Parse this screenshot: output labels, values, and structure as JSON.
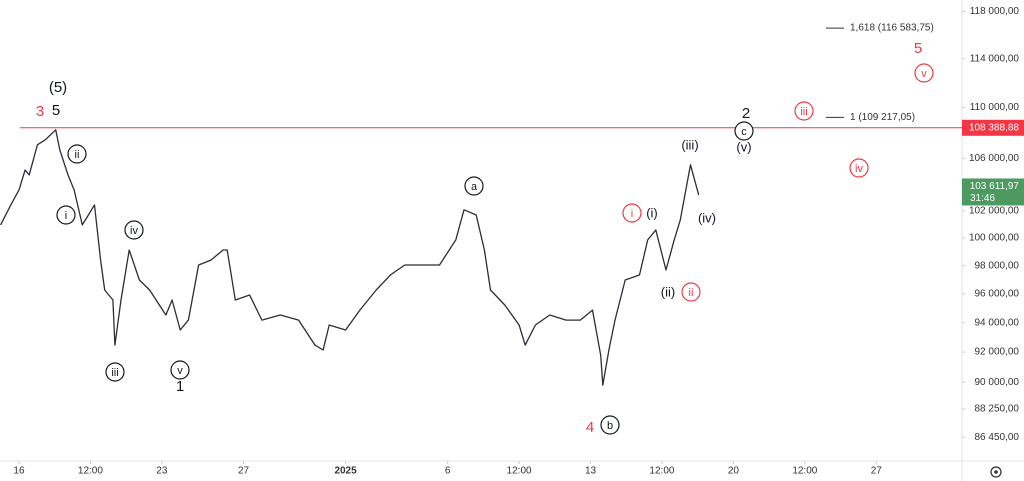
{
  "chart_data": {
    "type": "line",
    "log_scale": true,
    "grid": false,
    "series": [
      {
        "name": null,
        "color": "#2a2e39",
        "x": [
          -0.9,
          -0.4,
          0.0,
          0.3,
          0.5,
          0.9,
          1.3,
          1.8,
          2.0,
          2.4,
          2.7,
          3.1,
          3.4,
          3.7,
          4.0,
          4.2,
          4.6,
          4.7,
          5.0,
          5.4,
          5.9,
          6.4,
          7.2,
          7.5,
          7.9,
          8.3,
          8.8,
          9.4,
          10.0,
          10.2,
          10.6,
          11.3,
          11.9,
          12.8,
          13.7,
          14.5,
          14.9,
          15.2,
          16.0,
          16.7,
          17.5,
          18.2,
          18.9,
          19.7,
          20.6,
          21.4,
          21.8,
          22.4,
          22.8,
          23.1,
          23.8,
          24.5,
          24.8,
          25.3,
          26.0,
          26.8,
          27.5,
          28.1,
          28.5,
          28.6,
          28.9,
          29.2,
          29.7,
          30.4,
          30.8,
          31.2,
          31.7,
          32.1,
          32.4,
          32.9,
          33.3
        ],
        "values": [
          100960,
          102450,
          103580,
          105100,
          104720,
          107050,
          107450,
          108230,
          106660,
          104720,
          103580,
          100960,
          101700,
          102450,
          98400,
          96270,
          95570,
          92470,
          95570,
          99130,
          96980,
          96270,
          94530,
          95570,
          93500,
          94180,
          98050,
          98400,
          99130,
          99130,
          95570,
          95920,
          94180,
          94530,
          94180,
          92470,
          92140,
          93840,
          93500,
          94870,
          96270,
          97340,
          98050,
          98050,
          98050,
          99860,
          102080,
          101700,
          99130,
          96270,
          95220,
          93840,
          92470,
          93840,
          94530,
          94180,
          94180,
          94870,
          91790,
          89800,
          92140,
          94180,
          96980,
          97340,
          99860,
          100590,
          97690,
          99860,
          101330,
          105500,
          103200
        ]
      }
    ],
    "xlim": [
      -0.93,
      46.2
    ],
    "xticks": [
      {
        "value": 0,
        "label": "16"
      },
      {
        "value": 3.5,
        "label": "12:00"
      },
      {
        "value": 7,
        "label": "23"
      },
      {
        "value": 11,
        "label": "27"
      },
      {
        "value": 16,
        "label": "2025"
      },
      {
        "value": 21,
        "label": "6"
      },
      {
        "value": 24.5,
        "label": "12:00"
      },
      {
        "value": 28,
        "label": "13"
      },
      {
        "value": 31.5,
        "label": "12:00"
      },
      {
        "value": 35,
        "label": "20"
      },
      {
        "value": 38.5,
        "label": "12:00"
      },
      {
        "value": 42,
        "label": "27"
      }
    ],
    "ylim": [
      84900,
      119000
    ],
    "yticks": [
      {
        "value": 118000,
        "label": "118 000,00"
      },
      {
        "value": 114000,
        "label": "114 000,00"
      },
      {
        "value": 110000,
        "label": "110 000,00"
      },
      {
        "value": 106000,
        "label": "106 000,00"
      },
      {
        "value": 102000,
        "label": "102 000,00"
      },
      {
        "value": 100000,
        "label": "100 000,00"
      },
      {
        "value": 98000,
        "label": "98 000,00"
      },
      {
        "value": 96000,
        "label": "96 000,00"
      },
      {
        "value": 94000,
        "label": "94 000,00"
      },
      {
        "value": 92000,
        "label": "92 000,00"
      },
      {
        "value": 90000,
        "label": "90 000,00"
      },
      {
        "value": 88250,
        "label": "88 250,00"
      },
      {
        "value": 86450,
        "label": "86 450,00"
      }
    ],
    "price_line": {
      "value": 108388.88,
      "label": "108 388,88",
      "color": "#f23645"
    },
    "last_price": {
      "value": 103611.97,
      "label": "103 611,97",
      "countdown": "31:46",
      "color": "#4c9a5f"
    },
    "fib_levels": [
      {
        "value": 116583.75,
        "label": "1,618 (116 583,75)"
      },
      {
        "value": 109217.05,
        "label": "1 (109 217,05)"
      }
    ],
    "annotations": [
      {
        "text": "(5)",
        "circled": false,
        "color": "#131722"
      },
      {
        "text": "3",
        "circled": false,
        "color": "#f23645"
      },
      {
        "text": "5",
        "circled": false,
        "color": "#131722"
      },
      {
        "text": "ii",
        "circled": true,
        "color": "#131722"
      },
      {
        "text": "i",
        "circled": true,
        "color": "#131722"
      },
      {
        "text": "iv",
        "circled": true,
        "color": "#131722"
      },
      {
        "text": "iii",
        "circled": true,
        "color": "#131722"
      },
      {
        "text": "v",
        "circled": true,
        "color": "#131722"
      },
      {
        "text": "1",
        "circled": false,
        "color": "#131722"
      },
      {
        "text": "a",
        "circled": true,
        "color": "#131722"
      },
      {
        "text": "b",
        "circled": true,
        "color": "#131722"
      },
      {
        "text": "4",
        "circled": false,
        "color": "#f23645"
      },
      {
        "text": "i",
        "circled": true,
        "color": "#f23645"
      },
      {
        "text": "(i)",
        "circled": false,
        "color": "#131722"
      },
      {
        "text": "(ii)",
        "circled": false,
        "color": "#131722"
      },
      {
        "text": "ii",
        "circled": true,
        "color": "#f23645"
      },
      {
        "text": "(iii)",
        "circled": false,
        "color": "#131722"
      },
      {
        "text": "(iv)",
        "circled": false,
        "color": "#131722"
      },
      {
        "text": "2",
        "circled": false,
        "color": "#131722"
      },
      {
        "text": "c",
        "circled": true,
        "color": "#131722"
      },
      {
        "text": "(v)",
        "circled": false,
        "color": "#131722"
      },
      {
        "text": "iii",
        "circled": true,
        "color": "#f23645"
      },
      {
        "text": "iv",
        "circled": true,
        "color": "#f23645"
      },
      {
        "text": "5",
        "circled": false,
        "color": "#f23645"
      },
      {
        "text": "v",
        "circled": true,
        "color": "#f23645"
      }
    ]
  }
}
